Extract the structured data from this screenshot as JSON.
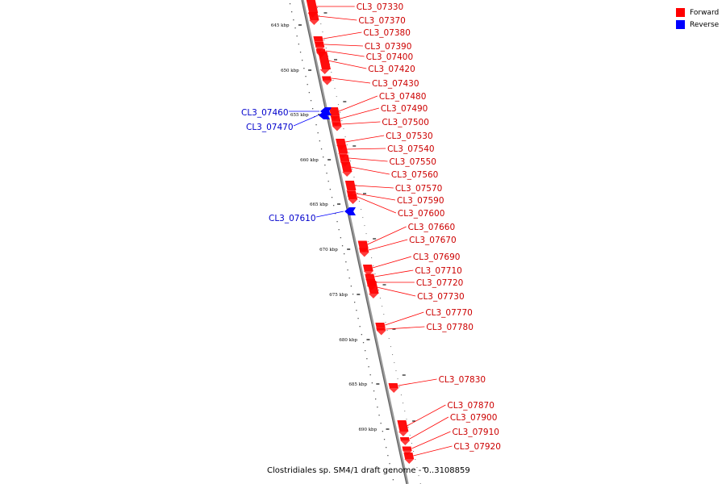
{
  "legend": {
    "forward_label": "Forward",
    "reverse_label": "Reverse",
    "forward_color": "#ff0000",
    "reverse_color": "#0000ff"
  },
  "caption": "Clostridiales sp. SM4/1 draft genome - 0..3108859",
  "axis": {
    "ticks": [
      "645 kbp",
      "650 kbp",
      "655 kbp",
      "660 kbp",
      "665 kbp",
      "670 kbp",
      "675 kbp",
      "680 kbp",
      "685 kbp",
      "690 kbp"
    ]
  },
  "genes": {
    "forward": [
      "CL3_07330",
      "CL3_07370",
      "CL3_07380",
      "CL3_07390",
      "CL3_07400",
      "CL3_07420",
      "CL3_07430",
      "CL3_07480",
      "CL3_07490",
      "CL3_07500",
      "CL3_07530",
      "CL3_07540",
      "CL3_07550",
      "CL3_07560",
      "CL3_07570",
      "CL3_07590",
      "CL3_07600",
      "CL3_07660",
      "CL3_07670",
      "CL3_07690",
      "CL3_07710",
      "CL3_07720",
      "CL3_07730",
      "CL3_07770",
      "CL3_07780",
      "CL3_07830",
      "CL3_07870",
      "CL3_07900",
      "CL3_07910",
      "CL3_07920"
    ],
    "reverse": [
      "CL3_07460",
      "CL3_07470",
      "CL3_07610"
    ]
  }
}
